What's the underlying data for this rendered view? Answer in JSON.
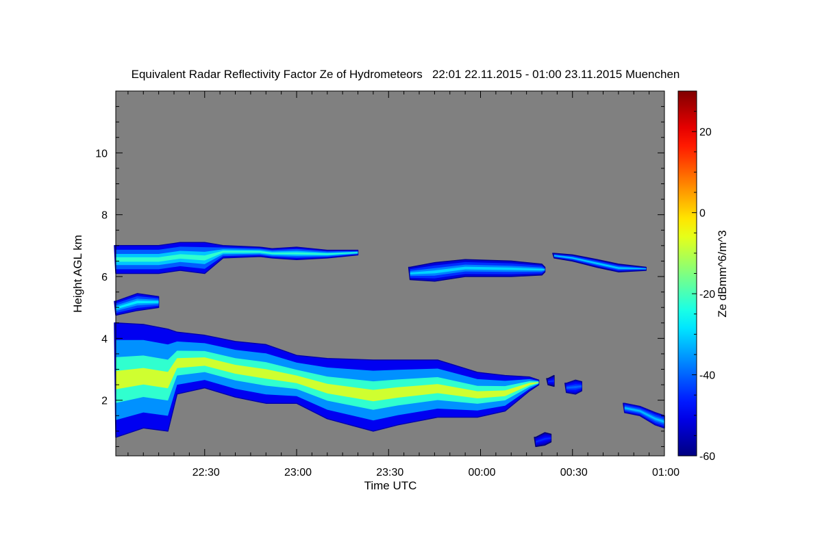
{
  "chart_data": {
    "type": "heatmap",
    "title": "Equivalent Radar Reflectivity Factor Ze of Hydrometeors   22:01 22.11.2015 - 01:00 23.11.2015 Muenchen",
    "xlabel": "Time UTC",
    "ylabel": "Height AGL km",
    "colorbar_label": "Ze dBmm^6/m^3",
    "x_units": "minutes after 22:00 UTC",
    "xlim": [
      1,
      180
    ],
    "ylim": [
      0.2,
      12
    ],
    "x_ticks": [
      {
        "t": 30,
        "label": "22:30"
      },
      {
        "t": 60,
        "label": "23:00"
      },
      {
        "t": 90,
        "label": "23:30"
      },
      {
        "t": 120,
        "label": "00:00"
      },
      {
        "t": 150,
        "label": "00:30"
      },
      {
        "t": 180,
        "label": "01:00"
      }
    ],
    "y_ticks": [
      {
        "v": 2,
        "label": "2"
      },
      {
        "v": 4,
        "label": "4"
      },
      {
        "v": 6,
        "label": "6"
      },
      {
        "v": 8,
        "label": "8"
      },
      {
        "v": 10,
        "label": "10"
      }
    ],
    "colorbar_range": [
      -60,
      30
    ],
    "colorbar_ticks": [
      {
        "v": -60,
        "label": "-60"
      },
      {
        "v": -40,
        "label": "-40"
      },
      {
        "v": -20,
        "label": "-20"
      },
      {
        "v": 0,
        "label": "0"
      },
      {
        "v": 20,
        "label": "20"
      }
    ],
    "background_color": "#808080",
    "colormap": "jet",
    "cloud_layers": [
      {
        "name": "upper-layer-early",
        "edge_ze": -50,
        "core_ze": -22,
        "columns": [
          [
            1,
            6.1,
            7.0
          ],
          [
            15,
            6.1,
            7.0
          ],
          [
            22,
            6.2,
            7.1
          ],
          [
            30,
            6.1,
            7.1
          ],
          [
            36,
            6.6,
            7.0
          ],
          [
            48,
            6.65,
            6.95
          ],
          [
            52,
            6.6,
            6.9
          ],
          [
            60,
            6.55,
            6.95
          ],
          [
            70,
            6.6,
            6.85
          ],
          [
            80,
            6.7,
            6.85
          ]
        ]
      },
      {
        "name": "layer-5km",
        "edge_ze": -50,
        "core_ze": -28,
        "columns": [
          [
            1,
            4.75,
            5.2
          ],
          [
            8,
            4.9,
            5.45
          ],
          [
            15,
            5.0,
            5.35
          ]
        ]
      },
      {
        "name": "main-lower-layer",
        "edge_ze": -50,
        "core_ze": -8,
        "columns": [
          [
            1,
            0.8,
            4.5
          ],
          [
            10,
            1.1,
            4.45
          ],
          [
            18,
            1.0,
            4.3
          ],
          [
            21,
            2.2,
            4.2
          ],
          [
            30,
            2.4,
            4.1
          ],
          [
            40,
            2.1,
            3.9
          ],
          [
            50,
            1.9,
            3.8
          ],
          [
            60,
            1.9,
            3.45
          ],
          [
            70,
            1.4,
            3.35
          ],
          [
            85,
            1.0,
            3.3
          ],
          [
            93,
            1.2,
            3.3
          ],
          [
            106,
            1.45,
            3.3
          ],
          [
            119,
            1.45,
            2.9
          ],
          [
            128,
            1.65,
            2.8
          ],
          [
            136,
            2.3,
            2.75
          ],
          [
            139,
            2.5,
            2.65
          ]
        ]
      },
      {
        "name": "upper-layer-mid",
        "edge_ze": -52,
        "core_ze": -30,
        "columns": [
          [
            97,
            5.9,
            6.3
          ],
          [
            105,
            5.85,
            6.45
          ],
          [
            115,
            6.0,
            6.55
          ],
          [
            130,
            6.0,
            6.5
          ],
          [
            140,
            6.05,
            6.4
          ],
          [
            141,
            6.15,
            6.3
          ]
        ]
      },
      {
        "name": "upper-layer-late",
        "edge_ze": -52,
        "core_ze": -30,
        "columns": [
          [
            144,
            6.6,
            6.75
          ],
          [
            150,
            6.5,
            6.7
          ],
          [
            158,
            6.3,
            6.55
          ],
          [
            165,
            6.15,
            6.4
          ],
          [
            174,
            6.2,
            6.3
          ]
        ]
      },
      {
        "name": "patch-0030",
        "edge_ze": -52,
        "core_ze": -40,
        "columns": [
          [
            148,
            2.25,
            2.55
          ],
          [
            151,
            2.2,
            2.65
          ],
          [
            153,
            2.3,
            2.6
          ]
        ]
      },
      {
        "name": "patch-0020-low",
        "edge_ze": -55,
        "core_ze": -45,
        "columns": [
          [
            138,
            0.5,
            0.8
          ],
          [
            141,
            0.55,
            0.95
          ],
          [
            143,
            0.65,
            0.9
          ]
        ]
      },
      {
        "name": "patch-0018",
        "edge_ze": -55,
        "core_ze": -45,
        "columns": [
          [
            142,
            2.5,
            2.7
          ],
          [
            144,
            2.45,
            2.8
          ]
        ]
      },
      {
        "name": "patch-0050",
        "edge_ze": -50,
        "core_ze": -32,
        "columns": [
          [
            167,
            1.6,
            1.9
          ],
          [
            172,
            1.5,
            1.8
          ],
          [
            177,
            1.2,
            1.6
          ],
          [
            180,
            1.1,
            1.5
          ]
        ]
      }
    ]
  }
}
